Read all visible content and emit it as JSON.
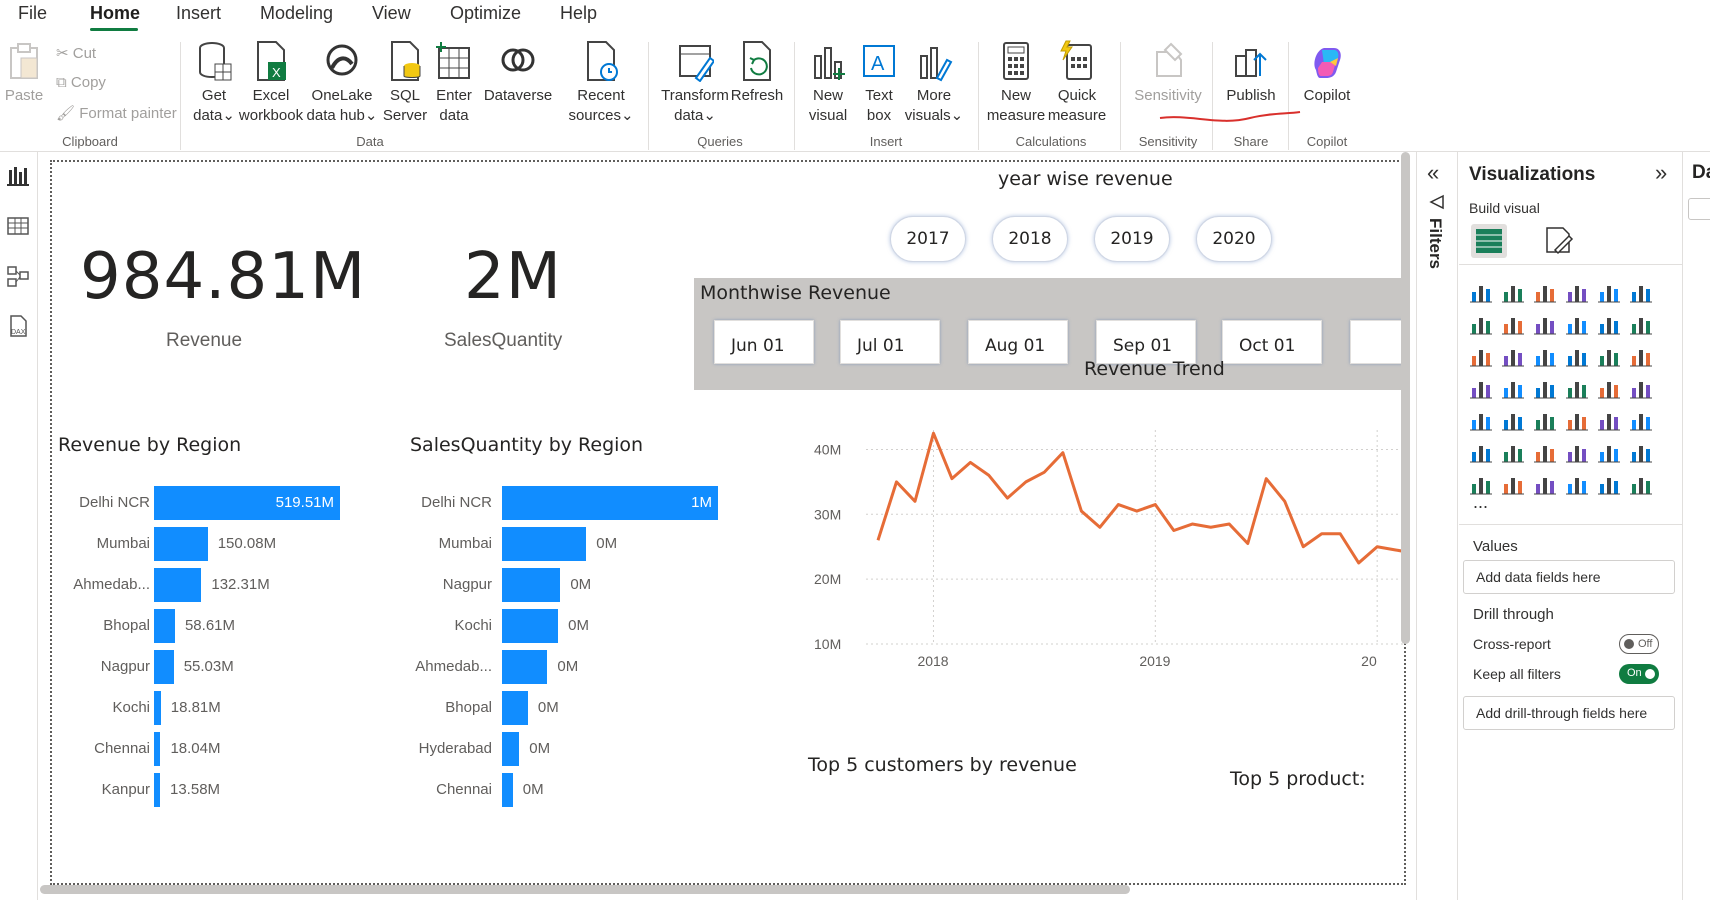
{
  "menu": {
    "file": "File",
    "home": "Home",
    "insert": "Insert",
    "modeling": "Modeling",
    "view": "View",
    "optimize": "Optimize",
    "help": "Help"
  },
  "ribbon": {
    "paste": "Paste",
    "cut": "Cut",
    "copy": "Copy",
    "format_painter": "Format painter",
    "get_data_1": "Get",
    "get_data_2": "data",
    "excel_1": "Excel",
    "excel_2": "workbook",
    "onelake_1": "OneLake",
    "onelake_2": "data hub",
    "sql_1": "SQL",
    "sql_2": "Server",
    "enter_1": "Enter",
    "enter_2": "data",
    "dataverse": "Dataverse",
    "recent_1": "Recent",
    "recent_2": "sources",
    "transform_1": "Transform",
    "transform_2": "data",
    "refresh": "Refresh",
    "newvisual_1": "New",
    "newvisual_2": "visual",
    "textbox_1": "Text",
    "textbox_2": "box",
    "morevisuals_1": "More",
    "morevisuals_2": "visuals",
    "newmeasure_1": "New",
    "newmeasure_2": "measure",
    "quickmeasure_1": "Quick",
    "quickmeasure_2": "measure",
    "sensitivity": "Sensitivity",
    "publish": "Publish",
    "copilot": "Copilot",
    "groups": {
      "clipboard": "Clipboard",
      "data": "Data",
      "queries": "Queries",
      "insert": "Insert",
      "calculations": "Calculations",
      "sensitivity": "Sensitivity",
      "share": "Share",
      "copilot": "Copilot"
    }
  },
  "report": {
    "revenue_value": "984.81M",
    "revenue_label": "Revenue",
    "qty_value": "2M",
    "qty_label": "SalesQuantity",
    "year_title": "year wise revenue",
    "years": [
      "2017",
      "2018",
      "2019",
      "2020"
    ],
    "month_title": "Monthwise Revenue",
    "months": [
      "Jun 01",
      "Jul 01",
      "Aug 01",
      "Sep 01",
      "Oct 01"
    ],
    "trend_title": "Revenue Trend",
    "rev_region_title": "Revenue by Region",
    "qty_region_title": "SalesQuantity by Region",
    "top_customers_title": "Top 5 customers by revenue",
    "top_products_title": "Top 5 product:"
  },
  "chart_data": [
    {
      "type": "bar",
      "title": "Revenue by Region",
      "categories": [
        "Delhi NCR",
        "Mumbai",
        "Ahmedab...",
        "Bhopal",
        "Nagpur",
        "Kochi",
        "Chennai",
        "Kanpur"
      ],
      "values": [
        519.51,
        150.08,
        132.31,
        58.61,
        55.03,
        18.81,
        18.04,
        13.58
      ],
      "labels": [
        "519.51M",
        "150.08M",
        "132.31M",
        "58.61M",
        "55.03M",
        "18.81M",
        "18.04M",
        "13.58M"
      ]
    },
    {
      "type": "bar",
      "title": "SalesQuantity by Region",
      "categories": [
        "Delhi NCR",
        "Mumbai",
        "Nagpur",
        "Kochi",
        "Ahmedab...",
        "Bhopal",
        "Hyderabad",
        "Chennai"
      ],
      "values": [
        1.0,
        0.39,
        0.27,
        0.26,
        0.21,
        0.12,
        0.08,
        0.05
      ],
      "labels": [
        "1M",
        "0M",
        "0M",
        "0M",
        "0M",
        "0M",
        "0M",
        "0M"
      ]
    },
    {
      "type": "line",
      "title": "Revenue Trend",
      "x_ticks": [
        "2018",
        "2019",
        "20"
      ],
      "y_ticks": [
        "40M",
        "30M",
        "20M",
        "10M"
      ],
      "ylim": [
        10,
        43
      ],
      "series": [
        {
          "color": "#e66c37",
          "x": [
            "2017-10",
            "2017-11",
            "2017-12",
            "2018-01",
            "2018-02",
            "2018-03",
            "2018-04",
            "2018-05",
            "2018-06",
            "2018-07",
            "2018-08",
            "2018-09",
            "2018-10",
            "2018-11",
            "2018-12",
            "2019-01",
            "2019-02",
            "2019-03",
            "2019-04",
            "2019-05",
            "2019-06",
            "2019-07",
            "2019-08",
            "2019-09",
            "2019-10",
            "2019-11",
            "2019-12",
            "2020-01",
            "2020-02",
            "2020-03"
          ],
          "values": [
            26,
            35,
            32,
            42.5,
            35.5,
            38,
            36,
            32.5,
            35,
            36.5,
            39.5,
            30.5,
            28,
            31.5,
            30.5,
            31.5,
            27.5,
            28.5,
            28,
            28.5,
            25.5,
            35.5,
            32,
            25,
            27,
            27,
            22.5,
            25,
            24.5,
            24
          ]
        }
      ],
      "grid": true
    }
  ],
  "viz_pane": {
    "title": "Visualizations",
    "build": "Build visual",
    "values": "Values",
    "values_well": "Add data fields here",
    "drill": "Drill through",
    "cross": "Cross-report",
    "cross_state": "Off",
    "keep": "Keep all filters",
    "keep_state": "On",
    "drill_well": "Add drill-through fields here",
    "more": "..."
  },
  "filters_label": "Filters",
  "data_pane_label": "Da",
  "colors": {
    "accent": "#118dff",
    "line": "#e66c37",
    "ribbon_green": "#107c41",
    "toggle_on": "#107c41"
  }
}
